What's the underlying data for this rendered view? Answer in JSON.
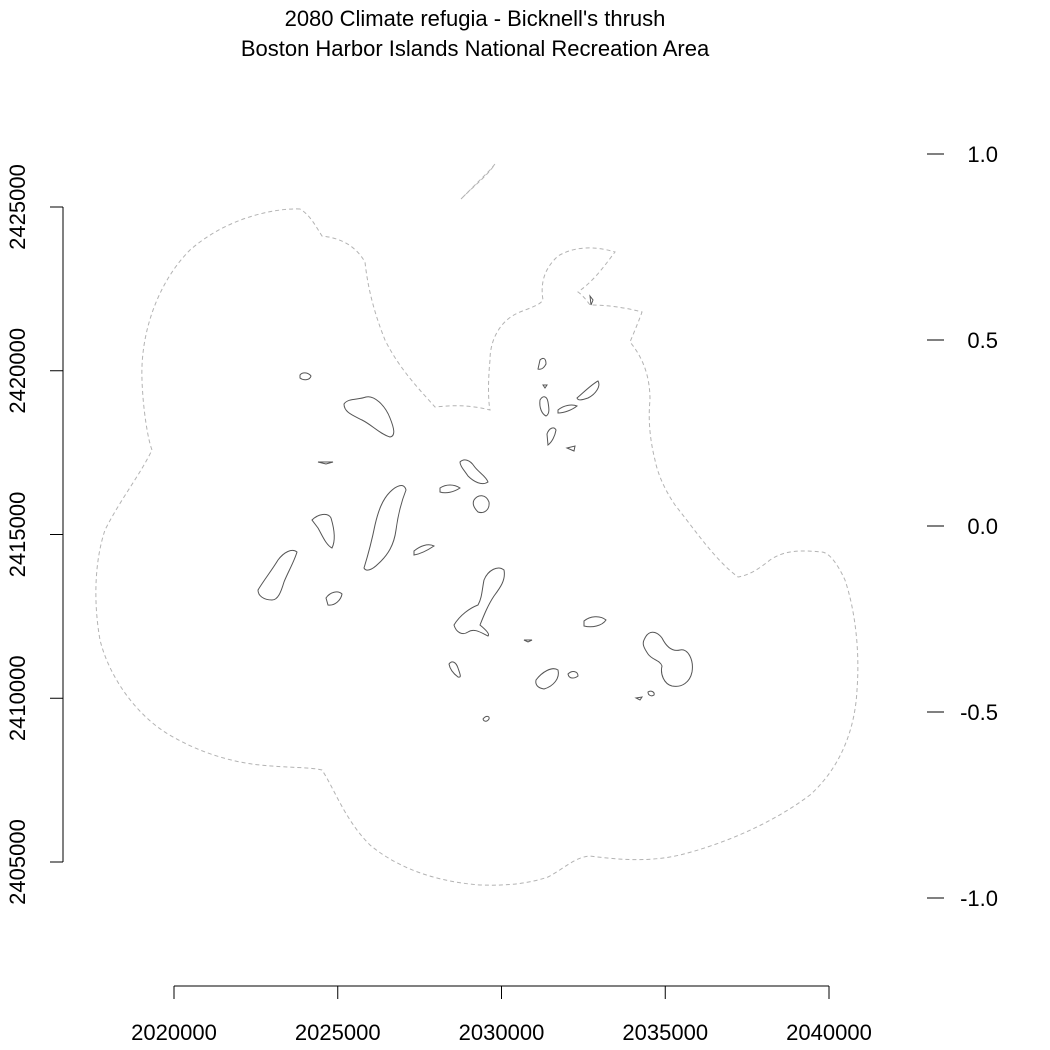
{
  "title": {
    "line1": "2080 Climate refugia - Bicknell's thrush",
    "line2": "Boston Harbor Islands National Recreation Area"
  },
  "chart_data": {
    "type": "map",
    "x_axis": {
      "ticks": [
        2020000,
        2025000,
        2030000,
        2035000,
        2040000
      ],
      "labels": [
        "2020000",
        "2025000",
        "2030000",
        "2035000",
        "2040000"
      ]
    },
    "y_axis": {
      "ticks": [
        2405000,
        2410000,
        2415000,
        2420000,
        2425000
      ],
      "labels": [
        "2405000",
        "2410000",
        "2415000",
        "2420000",
        "2425000"
      ]
    },
    "legend_axis": {
      "ticks": [
        1.0,
        0.5,
        0.0,
        -0.5,
        -1.0
      ],
      "labels": [
        "1.0",
        "0.5",
        "0.0",
        "-0.5",
        "-1.0"
      ]
    }
  },
  "colors": {
    "buffer_outline": "#b3b3b3",
    "island_outline": "#555555",
    "axis": "#000000"
  }
}
